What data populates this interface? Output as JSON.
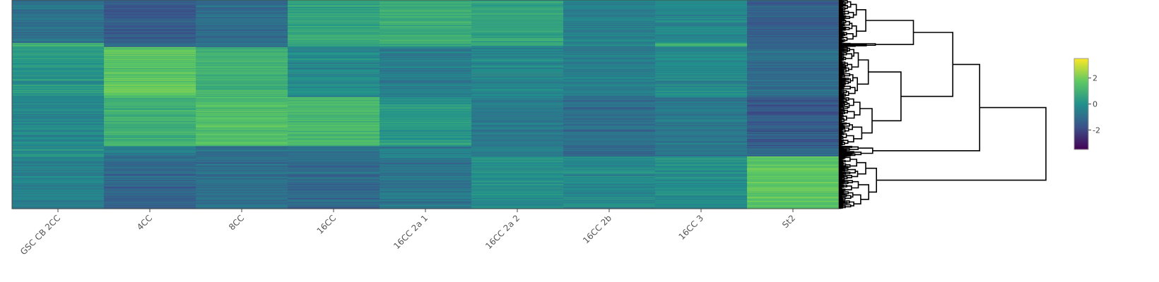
{
  "chart_data": {
    "type": "heatmap",
    "title": "",
    "xlabel": "",
    "ylabel": "",
    "grid": false,
    "colorscale": "viridis",
    "colors": [
      "#440154",
      "#3b528b",
      "#21918c",
      "#5ec962",
      "#fde725"
    ],
    "x_categories": [
      "GSC CB 2CC",
      "4CC",
      "8CC",
      "16CC",
      "16CC 2a 1",
      "16CC 2a 2",
      "16CC 2b",
      "16CC 3",
      "St2"
    ],
    "zmin": -3.5,
    "zmax": 3.5,
    "colorbar": {
      "ticks": [
        2,
        0,
        -2
      ],
      "tick_labels": [
        "2",
        "0",
        "-2"
      ]
    },
    "row_dendrogram": true,
    "cluster_profiles": [
      {
        "rows": 66,
        "values": [
          -0.9,
          -1.5,
          -1.0,
          0.6,
          0.8,
          0.5,
          -0.5,
          -0.3,
          -1.4
        ]
      },
      {
        "rows": 6,
        "values": [
          1.0,
          -1.2,
          -0.8,
          0.5,
          0.6,
          0.4,
          -0.4,
          0.8,
          -1.1
        ]
      },
      {
        "rows": 77,
        "values": [
          0.2,
          1.6,
          1.0,
          -0.2,
          -0.6,
          -0.3,
          -0.6,
          -0.2,
          -1.0
        ]
      },
      {
        "rows": 75,
        "values": [
          -0.3,
          1.0,
          1.4,
          1.2,
          0.2,
          -0.6,
          -1.0,
          -0.7,
          -1.5
        ]
      },
      {
        "rows": 16,
        "values": [
          0.0,
          -0.7,
          -0.9,
          -0.8,
          -0.6,
          -0.5,
          -1.1,
          -0.8,
          -1.2
        ]
      },
      {
        "rows": 80,
        "values": [
          -0.5,
          -1.2,
          -1.0,
          -1.1,
          -0.8,
          -0.1,
          -0.2,
          -0.1,
          1.6
        ]
      }
    ]
  }
}
